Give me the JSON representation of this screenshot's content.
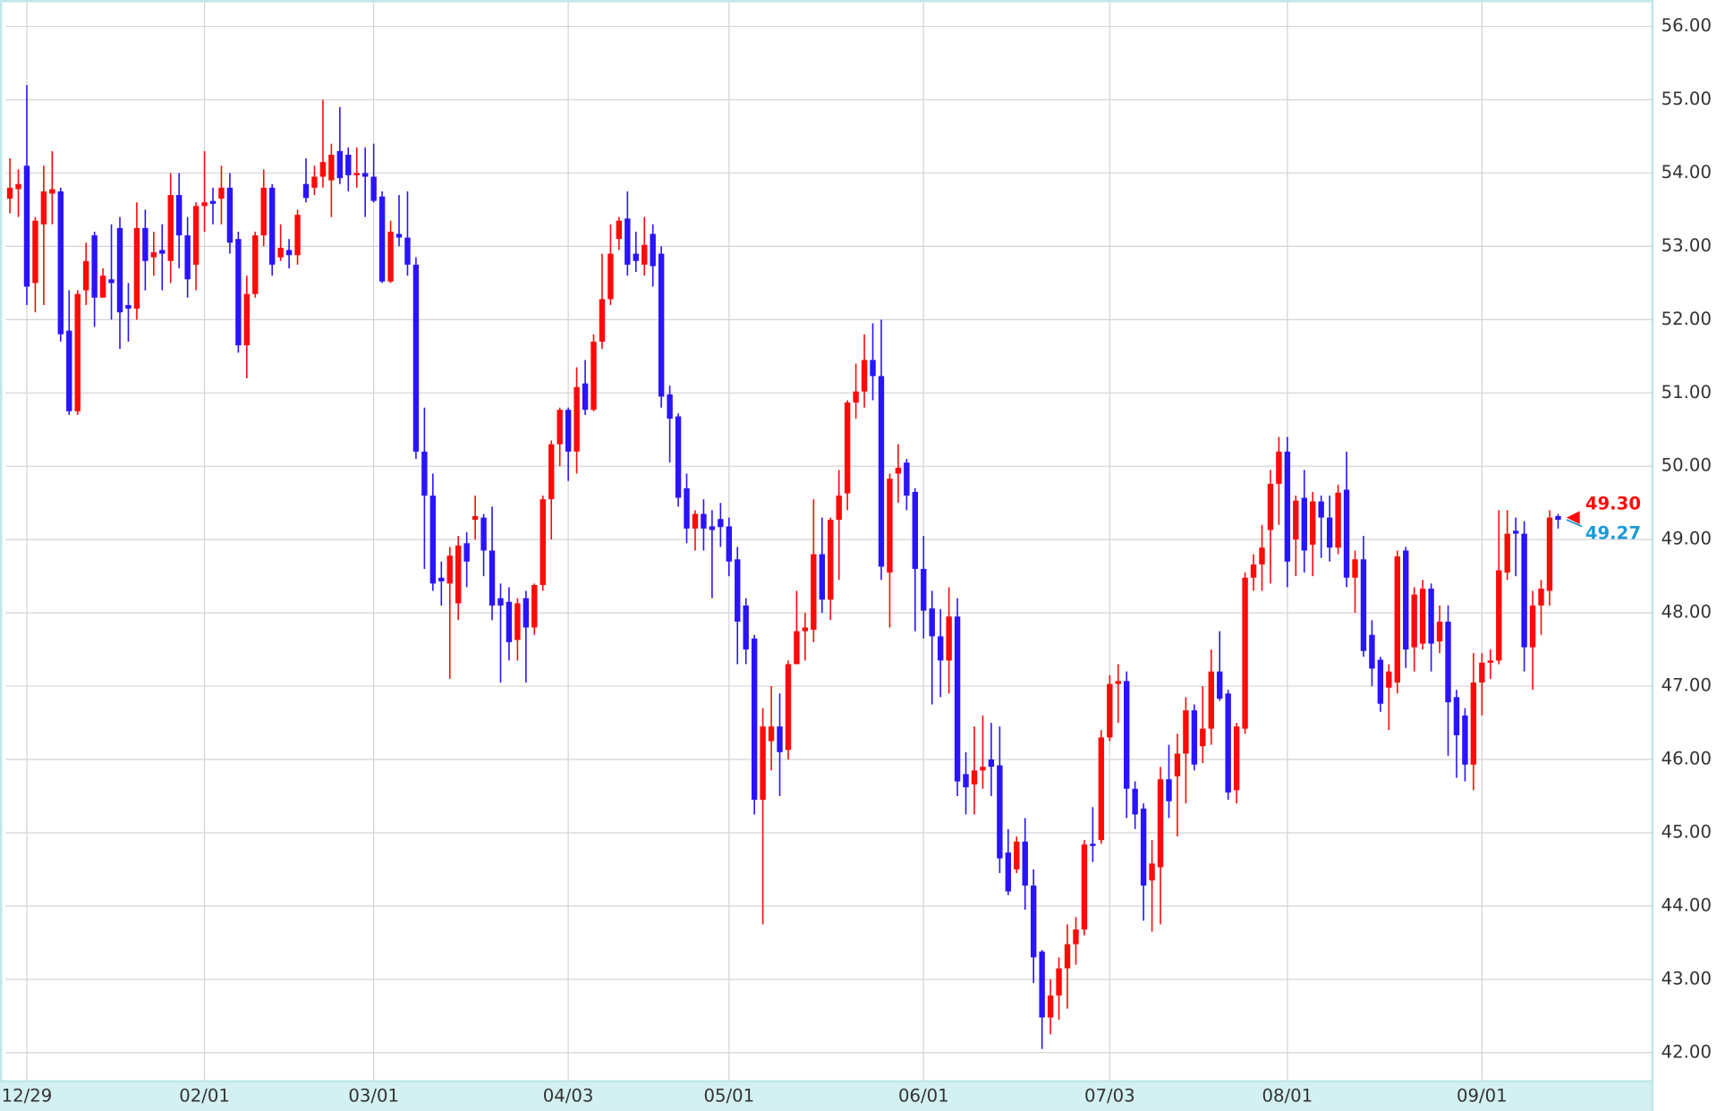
{
  "chart_data": {
    "type": "candlestick",
    "categories": [
      null,
      null,
      "12/29",
      null,
      null,
      null,
      null,
      null,
      null,
      null,
      null,
      null,
      null,
      null,
      null,
      null,
      null,
      null,
      null,
      null,
      null,
      null,
      null,
      "02/01",
      null,
      null,
      null,
      null,
      null,
      null,
      null,
      null,
      null,
      null,
      null,
      null,
      null,
      null,
      null,
      null,
      null,
      null,
      null,
      "03/01",
      null,
      null,
      null,
      null,
      null,
      null,
      null,
      null,
      null,
      null,
      null,
      null,
      null,
      null,
      null,
      null,
      null,
      null,
      null,
      null,
      null,
      null,
      "04/03",
      null,
      null,
      null,
      null,
      null,
      null,
      null,
      null,
      null,
      null,
      null,
      null,
      null,
      null,
      null,
      null,
      null,
      null,
      "05/01",
      null,
      null,
      null,
      null,
      null,
      null,
      null,
      null,
      null,
      null,
      null,
      null,
      null,
      null,
      null,
      null,
      null,
      null,
      null,
      null,
      null,
      null,
      "06/01",
      null,
      null,
      null,
      null,
      null,
      null,
      null,
      null,
      null,
      null,
      null,
      null,
      null,
      null,
      null,
      null,
      null,
      null,
      null,
      null,
      null,
      "07/03",
      null,
      null,
      null,
      null,
      null,
      null,
      null,
      null,
      null,
      null,
      null,
      null,
      null,
      null,
      null,
      null,
      null,
      null,
      null,
      null,
      "08/01",
      null,
      null,
      null,
      null,
      null,
      null,
      null,
      null,
      null,
      null,
      null,
      null,
      null,
      null,
      null,
      null,
      null,
      null,
      null,
      null,
      null,
      null,
      "09/01",
      null,
      null,
      null,
      null,
      null,
      null,
      null,
      null,
      null
    ],
    "open": [
      53.65,
      53.78,
      54.1,
      52.5,
      53.3,
      53.72,
      53.75,
      51.85,
      50.75,
      52.4,
      53.15,
      52.3,
      52.55,
      53.25,
      52.2,
      52.15,
      53.25,
      52.85,
      52.95,
      52.8,
      53.7,
      53.15,
      52.75,
      53.55,
      53.62,
      53.65,
      53.8,
      53.1,
      51.65,
      52.35,
      53.15,
      53.8,
      52.85,
      52.95,
      52.88,
      53.85,
      53.8,
      53.95,
      53.9,
      54.3,
      54.25,
      53.97,
      54.0,
      53.95,
      53.68,
      52.52,
      53.17,
      53.12,
      52.75,
      50.2,
      49.6,
      48.48,
      48.4,
      48.13,
      48.95,
      49.27,
      49.3,
      48.85,
      48.2,
      48.15,
      47.63,
      48.2,
      47.8,
      48.38,
      49.55,
      50.3,
      50.77,
      50.2,
      51.13,
      50.77,
      51.7,
      52.28,
      53.1,
      53.38,
      52.9,
      52.75,
      53.17,
      52.9,
      50.98,
      50.68,
      49.7,
      49.15,
      49.35,
      49.18,
      49.28,
      49.18,
      48.73,
      48.1,
      47.65,
      45.45,
      46.25,
      46.45,
      46.13,
      47.3,
      47.75,
      47.77,
      48.8,
      48.18,
      49.27,
      49.63,
      50.87,
      51.02,
      51.45,
      51.23,
      48.55,
      49.9,
      50.05,
      49.65,
      48.6,
      48.06,
      47.68,
      47.35,
      47.95,
      45.8,
      45.66,
      45.85,
      46.0,
      45.92,
      44.73,
      44.5,
      44.88,
      44.28,
      43.38,
      42.48,
      42.78,
      43.15,
      43.48,
      43.68,
      44.85,
      44.9,
      46.3,
      47.03,
      47.07,
      45.6,
      45.33,
      44.35,
      44.53,
      45.73,
      45.77,
      46.08,
      46.67,
      46.18,
      46.42,
      47.2,
      46.9,
      45.58,
      46.42,
      48.48,
      48.66,
      49.13,
      49.76,
      50.2,
      49.0,
      49.57,
      48.93,
      49.52,
      49.3,
      48.89,
      49.68,
      48.48,
      48.73,
      47.7,
      47.36,
      46.98,
      47.05,
      48.85,
      47.53,
      47.58,
      48.33,
      47.61,
      47.88,
      46.85,
      46.6,
      45.93,
      47.05,
      47.32,
      47.35,
      48.55,
      49.12,
      49.08,
      47.53,
      48.1,
      48.3,
      49.32
    ],
    "high": [
      54.2,
      54.05,
      55.2,
      53.4,
      54.1,
      54.3,
      53.8,
      52.4,
      52.4,
      53.05,
      53.2,
      52.7,
      53.3,
      53.4,
      52.5,
      53.6,
      53.5,
      53.2,
      53.3,
      54.0,
      54.0,
      53.4,
      53.6,
      54.3,
      53.8,
      54.1,
      54.0,
      53.2,
      52.6,
      53.2,
      54.05,
      53.85,
      53.3,
      53.1,
      53.5,
      54.2,
      54.1,
      55.0,
      54.4,
      54.9,
      54.35,
      54.35,
      54.35,
      54.4,
      53.75,
      53.35,
      53.7,
      53.75,
      52.85,
      50.8,
      49.9,
      48.7,
      48.9,
      49.05,
      49.1,
      49.6,
      49.35,
      49.45,
      48.4,
      48.35,
      48.2,
      48.3,
      48.4,
      49.6,
      50.35,
      50.8,
      50.8,
      51.35,
      51.45,
      51.8,
      52.9,
      53.3,
      53.4,
      53.75,
      53.2,
      53.4,
      53.3,
      53.0,
      51.1,
      50.72,
      49.9,
      49.4,
      49.55,
      49.4,
      49.5,
      49.3,
      48.9,
      48.2,
      47.7,
      46.7,
      47.0,
      46.9,
      47.35,
      48.3,
      48.0,
      49.55,
      49.3,
      49.3,
      49.95,
      50.9,
      51.4,
      51.8,
      51.95,
      52.0,
      49.9,
      50.3,
      50.1,
      49.7,
      49.05,
      48.3,
      48.05,
      48.35,
      48.2,
      46.1,
      46.45,
      46.6,
      46.5,
      46.45,
      45.05,
      44.95,
      45.2,
      44.5,
      43.4,
      43.0,
      43.3,
      43.75,
      43.85,
      44.9,
      45.35,
      46.4,
      47.15,
      47.3,
      47.2,
      45.7,
      45.4,
      44.9,
      45.9,
      46.2,
      46.35,
      46.85,
      46.75,
      47.0,
      47.5,
      47.75,
      46.95,
      46.5,
      48.55,
      48.8,
      49.2,
      49.95,
      50.4,
      50.4,
      49.6,
      49.95,
      49.65,
      49.6,
      49.6,
      49.75,
      50.2,
      48.85,
      49.05,
      47.9,
      47.4,
      47.3,
      48.85,
      48.9,
      48.35,
      48.45,
      48.4,
      48.1,
      48.1,
      46.95,
      46.7,
      47.45,
      47.45,
      47.5,
      49.4,
      49.4,
      49.3,
      49.25,
      48.3,
      48.45,
      49.4,
      49.35
    ],
    "low": [
      53.45,
      53.4,
      52.2,
      52.1,
      52.2,
      53.3,
      51.7,
      50.7,
      50.7,
      52.2,
      51.9,
      52.3,
      52.0,
      51.6,
      51.7,
      52.0,
      52.4,
      52.6,
      52.4,
      52.5,
      52.7,
      52.3,
      52.4,
      53.2,
      53.3,
      53.3,
      52.9,
      51.55,
      51.2,
      52.3,
      53.0,
      52.6,
      52.8,
      52.7,
      52.75,
      53.6,
      53.7,
      53.8,
      53.4,
      53.85,
      53.75,
      53.8,
      53.4,
      53.6,
      52.5,
      52.5,
      53.0,
      52.6,
      50.1,
      48.6,
      48.3,
      48.1,
      47.1,
      47.9,
      48.35,
      49.0,
      48.5,
      47.9,
      47.05,
      47.35,
      47.35,
      47.05,
      47.7,
      48.3,
      49.0,
      50.0,
      49.8,
      49.9,
      50.7,
      50.75,
      51.6,
      52.2,
      52.95,
      52.6,
      52.65,
      52.6,
      52.45,
      50.8,
      50.05,
      49.45,
      48.95,
      48.85,
      48.85,
      48.2,
      48.9,
      48.5,
      47.3,
      47.3,
      45.25,
      43.75,
      45.85,
      45.5,
      46.0,
      47.3,
      47.35,
      47.6,
      48.0,
      47.9,
      48.45,
      49.4,
      50.65,
      50.8,
      50.9,
      48.45,
      47.8,
      49.5,
      49.4,
      47.75,
      47.65,
      46.75,
      46.85,
      46.9,
      45.5,
      45.25,
      45.25,
      45.6,
      45.5,
      44.45,
      44.15,
      44.45,
      43.95,
      42.95,
      42.05,
      42.25,
      42.45,
      42.6,
      43.2,
      43.6,
      44.6,
      44.85,
      46.25,
      46.5,
      45.2,
      45.05,
      43.8,
      43.65,
      43.75,
      45.2,
      44.95,
      45.4,
      45.85,
      45.95,
      46.2,
      46.8,
      45.45,
      45.4,
      46.35,
      48.3,
      48.3,
      48.4,
      49.2,
      48.35,
      48.5,
      48.55,
      48.5,
      48.75,
      48.7,
      48.8,
      48.35,
      48.0,
      47.4,
      47.0,
      46.65,
      46.4,
      46.9,
      47.25,
      47.2,
      47.5,
      47.2,
      47.45,
      46.05,
      45.75,
      45.7,
      45.58,
      46.6,
      47.1,
      47.3,
      48.45,
      48.5,
      47.2,
      46.95,
      47.7,
      48.1,
      49.15
    ],
    "close": [
      53.8,
      53.85,
      52.45,
      53.35,
      53.75,
      53.78,
      51.8,
      50.75,
      52.35,
      52.8,
      52.3,
      52.6,
      52.5,
      52.1,
      52.15,
      53.25,
      52.8,
      52.92,
      52.9,
      53.7,
      53.15,
      52.55,
      53.55,
      53.6,
      53.58,
      53.8,
      53.05,
      51.65,
      52.35,
      53.15,
      53.8,
      52.75,
      52.98,
      52.88,
      53.43,
      53.66,
      53.95,
      54.15,
      54.25,
      53.93,
      53.97,
      54.0,
      53.95,
      53.62,
      52.52,
      53.2,
      53.12,
      52.75,
      50.2,
      49.6,
      48.4,
      48.43,
      48.78,
      48.92,
      48.7,
      49.32,
      48.85,
      48.1,
      48.1,
      47.6,
      48.13,
      47.8,
      48.38,
      49.55,
      50.3,
      50.77,
      50.2,
      51.08,
      50.77,
      51.7,
      52.28,
      52.9,
      53.35,
      52.75,
      52.8,
      53.02,
      52.73,
      50.95,
      50.65,
      49.57,
      49.15,
      49.35,
      49.15,
      49.13,
      49.17,
      48.7,
      47.88,
      47.5,
      45.45,
      46.45,
      46.45,
      46.1,
      47.3,
      47.75,
      47.8,
      48.8,
      48.18,
      49.27,
      49.6,
      50.87,
      51.02,
      51.45,
      51.23,
      48.63,
      49.83,
      49.98,
      49.6,
      48.6,
      48.03,
      47.68,
      47.35,
      47.95,
      45.7,
      45.62,
      45.85,
      45.9,
      45.9,
      44.65,
      44.2,
      44.88,
      44.28,
      43.3,
      42.48,
      42.78,
      43.15,
      43.48,
      43.68,
      44.84,
      44.82,
      46.3,
      47.03,
      47.07,
      45.6,
      45.25,
      44.28,
      44.58,
      45.73,
      45.43,
      46.08,
      46.67,
      45.93,
      46.42,
      47.2,
      46.83,
      45.55,
      46.45,
      48.48,
      48.66,
      48.89,
      49.76,
      50.2,
      48.7,
      49.53,
      48.85,
      49.52,
      49.3,
      48.89,
      49.64,
      48.48,
      48.73,
      47.48,
      47.24,
      46.76,
      47.2,
      48.77,
      47.5,
      48.25,
      48.33,
      47.58,
      47.88,
      46.78,
      46.33,
      45.93,
      47.05,
      47.32,
      47.35,
      48.58,
      49.08,
      49.08,
      47.53,
      48.1,
      48.33,
      49.3,
      49.27
    ],
    "up_color": "#ff0a0a",
    "down_color": "#2a14ff",
    "ylim": [
      41.61,
      56.33
    ],
    "yticks": [
      {
        "value": 42,
        "label": "42.00"
      },
      {
        "value": 43,
        "label": "43.00"
      },
      {
        "value": 44,
        "label": "44.00"
      },
      {
        "value": 45,
        "label": "45.00"
      },
      {
        "value": 46,
        "label": "46.00"
      },
      {
        "value": 47,
        "label": "47.00"
      },
      {
        "value": 48,
        "label": "48.00"
      },
      {
        "value": 49,
        "label": "49.00"
      },
      {
        "value": 50,
        "label": "50.00"
      },
      {
        "value": 51,
        "label": "51.00"
      },
      {
        "value": 52,
        "label": "52.00"
      },
      {
        "value": 53,
        "label": "53.00"
      },
      {
        "value": 54,
        "label": "54.00"
      },
      {
        "value": 55,
        "label": "55.00"
      },
      {
        "value": 56,
        "label": "56.00"
      }
    ],
    "grid": true,
    "price_labels": [
      {
        "value": 49.3,
        "label": "49.30",
        "color": "#ff0a0a"
      },
      {
        "value": 49.27,
        "label": "49.27",
        "color": "#1a9ad6"
      }
    ]
  }
}
